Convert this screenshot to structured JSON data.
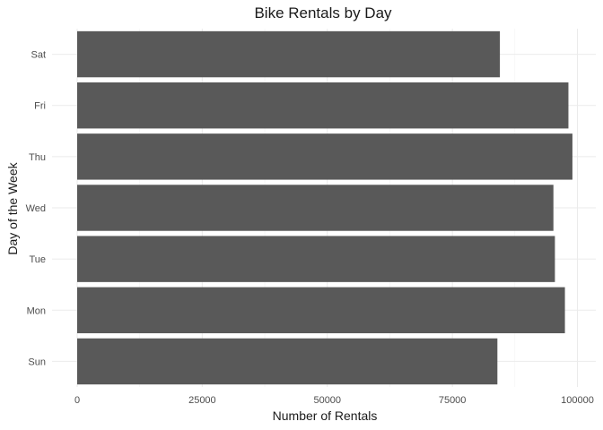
{
  "chart_data": {
    "type": "bar",
    "orientation": "horizontal",
    "title": "Bike Rentals by Day",
    "xlabel": "Number of Rentals",
    "ylabel": "Day of the Week",
    "categories": [
      "Sun",
      "Mon",
      "Tue",
      "Wed",
      "Thu",
      "Fri",
      "Sat"
    ],
    "values": [
      84000,
      97500,
      95500,
      95200,
      99000,
      98200,
      84500
    ],
    "xlim": [
      0,
      100000
    ],
    "xticks": [
      0,
      25000,
      50000,
      75000,
      100000
    ],
    "xtick_labels": [
      "0",
      "25000",
      "50000",
      "75000",
      "100000"
    ],
    "grid": true,
    "legend": "none",
    "colors": {
      "bar": "#595959",
      "grid": "#ebebeb",
      "background": "#ffffff"
    }
  }
}
